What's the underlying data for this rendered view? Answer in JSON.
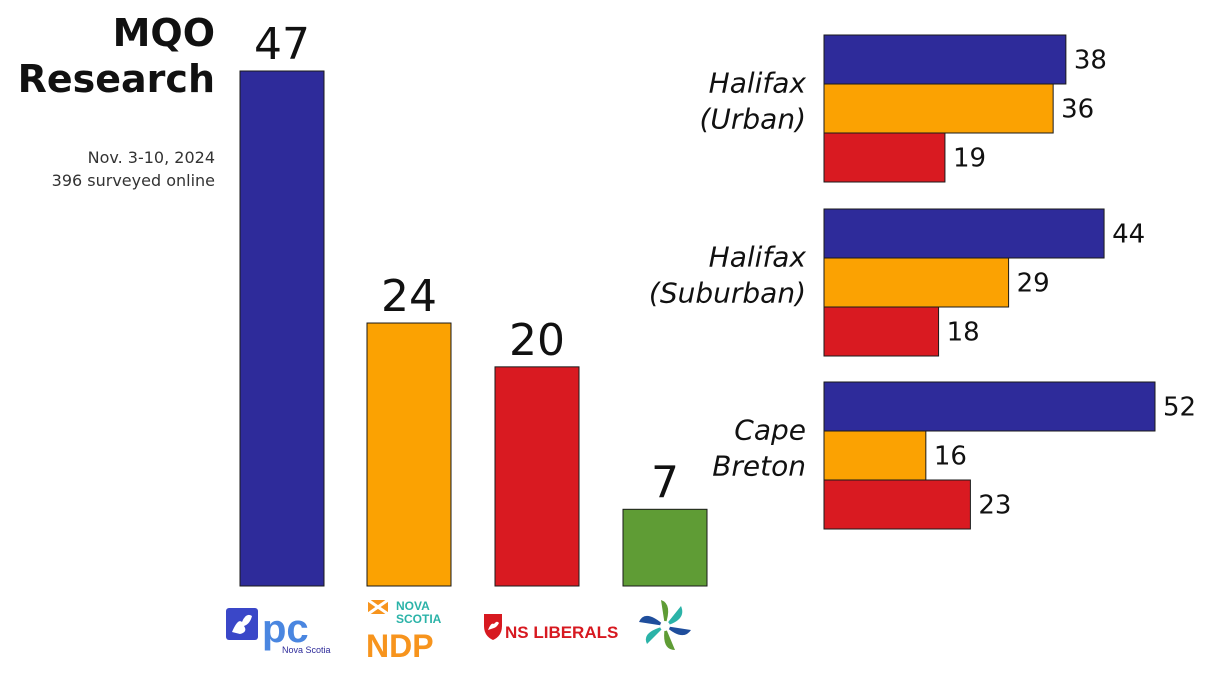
{
  "header": {
    "title_line1": "MQO",
    "title_line2": "Research",
    "date": "Nov. 3-10, 2024",
    "sample": "396 surveyed online"
  },
  "logos": {
    "pc": {
      "text": "pc",
      "sub": "Nova Scotia",
      "color": "#4a86e0",
      "icon": "lion-shield-icon"
    },
    "ndp": {
      "text_top": "NOVA\nSCOTIA",
      "text": "NDP",
      "color": "#f7941d",
      "icon": "saltire-flag-icon"
    },
    "liberal": {
      "text": "NS LIBERALS",
      "color": "#d71920",
      "icon": "lion-shield-icon"
    },
    "green": {
      "icon": "green-swirl-logo-icon"
    }
  },
  "colors": {
    "pc": "#2e2b9a",
    "ndp": "#fba202",
    "liberal": "#d91a21",
    "green": "#5f9c35"
  },
  "chart_data": [
    {
      "type": "bar",
      "categories": [
        "PC",
        "NDP",
        "Liberal",
        "Green"
      ],
      "values": [
        47,
        24,
        20,
        7
      ],
      "title": "",
      "xlabel": "",
      "ylabel": "",
      "ylim": [
        0,
        47
      ]
    },
    {
      "type": "bar",
      "orientation": "horizontal",
      "categories": [
        "Halifax\n(Urban)",
        "Halifax\n(Suburban)",
        "Cape\nBreton"
      ],
      "series": [
        {
          "values": [
            38,
            44,
            52
          ]
        },
        {
          "values": [
            36,
            29,
            16
          ]
        },
        {
          "values": [
            19,
            18,
            23
          ]
        }
      ],
      "xlim": [
        0,
        52
      ]
    }
  ]
}
